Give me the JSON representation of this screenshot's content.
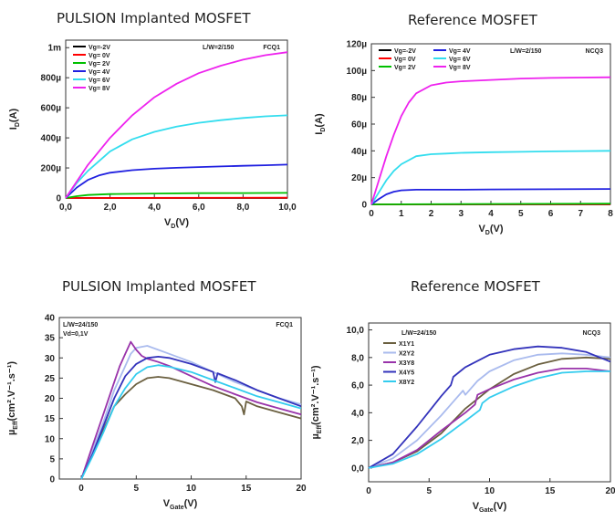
{
  "charts": [
    {
      "type": "line",
      "title": "PULSION Implanted MOSFET",
      "xlabel": "V",
      "xlabel_sub": "D",
      "xlabel_unit": "(V)",
      "ylabel": "I",
      "ylabel_sub": "D",
      "ylabel_unit": "(A)",
      "xlim": [
        0,
        10
      ],
      "ylim": [
        0,
        0.00105
      ],
      "xticks": [
        0,
        2,
        4,
        6,
        8,
        10
      ],
      "xtick_labels": [
        "0,0",
        "2,0",
        "4,0",
        "6,0",
        "8,0",
        "10,0"
      ],
      "yticks": [
        0,
        0.0002,
        0.0004,
        0.0006,
        0.0008,
        0.001
      ],
      "ytick_labels": [
        "0",
        "200µ",
        "400µ",
        "600µ",
        "800µ",
        "1m"
      ],
      "annotations": [
        "L/W=2/150",
        "FCQ1"
      ],
      "legend_cols": 1,
      "series": [
        {
          "name": "Vg=-2V",
          "color": "#000000",
          "x": [
            0,
            10
          ],
          "y": [
            0,
            0
          ]
        },
        {
          "name": "Vg= 0V",
          "color": "#ff0000",
          "x": [
            0,
            10
          ],
          "y": [
            0,
            2e-06
          ]
        },
        {
          "name": "Vg= 2V",
          "color": "#00c000",
          "x": [
            0,
            0.5,
            1,
            2,
            4,
            6,
            8,
            10
          ],
          "y": [
            0,
            1.2e-05,
            2e-05,
            2.6e-05,
            3e-05,
            3.2e-05,
            3.3e-05,
            3.4e-05
          ]
        },
        {
          "name": "Vg= 4V",
          "color": "#2020e0",
          "x": [
            0,
            0.5,
            1,
            1.5,
            2,
            3,
            4,
            5,
            6,
            7,
            8,
            9,
            10
          ],
          "y": [
            0,
            7e-05,
            0.00012,
            0.00015,
            0.000168,
            0.000185,
            0.000195,
            0.000201,
            0.000206,
            0.00021,
            0.000214,
            0.000218,
            0.000222
          ]
        },
        {
          "name": "Vg= 6V",
          "color": "#33ddee",
          "x": [
            0,
            0.5,
            1,
            2,
            3,
            4,
            5,
            6,
            7,
            8,
            9,
            10
          ],
          "y": [
            0,
            0.0001,
            0.00018,
            0.00031,
            0.00039,
            0.00044,
            0.000475,
            0.0005,
            0.000518,
            0.000532,
            0.000543,
            0.00055
          ]
        },
        {
          "name": "Vg= 8V",
          "color": "#ee22ee",
          "x": [
            0,
            1,
            2,
            3,
            4,
            5,
            6,
            7,
            8,
            9,
            10
          ],
          "y": [
            0,
            0.00022,
            0.0004,
            0.00055,
            0.00067,
            0.00076,
            0.00083,
            0.00088,
            0.00092,
            0.00095,
            0.00097
          ]
        }
      ]
    },
    {
      "type": "line",
      "title": "Reference MOSFET",
      "xlabel": "V",
      "xlabel_sub": "D",
      "xlabel_unit": "(V)",
      "ylabel": "I",
      "ylabel_sub": "D",
      "ylabel_unit": "(A)",
      "xlim": [
        0,
        8
      ],
      "ylim": [
        0,
        0.00012
      ],
      "xticks": [
        0,
        1,
        2,
        3,
        4,
        5,
        6,
        7,
        8
      ],
      "xtick_labels": [
        "0",
        "1",
        "2",
        "3",
        "4",
        "5",
        "6",
        "7",
        "8"
      ],
      "yticks": [
        0,
        2e-05,
        4e-05,
        6e-05,
        8e-05,
        0.0001,
        0.00012
      ],
      "ytick_labels": [
        "0",
        "20µ",
        "40µ",
        "60µ",
        "80µ",
        "100µ",
        "120µ"
      ],
      "annotations": [
        "L/W=2/150",
        "NCQ3"
      ],
      "legend_cols": 2,
      "series": [
        {
          "name": "Vg=-2V",
          "color": "#000000",
          "x": [
            0,
            8
          ],
          "y": [
            0,
            0
          ]
        },
        {
          "name": "Vg= 0V",
          "color": "#ff0000",
          "x": [
            0,
            8
          ],
          "y": [
            0,
            2e-07
          ]
        },
        {
          "name": "Vg= 2V",
          "color": "#00c000",
          "x": [
            0,
            8
          ],
          "y": [
            0,
            6e-07
          ]
        },
        {
          "name": "Vg= 4V",
          "color": "#2020e0",
          "x": [
            0,
            0.25,
            0.5,
            0.75,
            1,
            1.5,
            2,
            3,
            4,
            6,
            8
          ],
          "y": [
            0,
            4e-06,
            7.5e-06,
            9.5e-06,
            1.05e-05,
            1.1e-05,
            1.1e-05,
            1.1e-05,
            1.12e-05,
            1.13e-05,
            1.15e-05
          ]
        },
        {
          "name": "Vg= 6V",
          "color": "#33ddee",
          "x": [
            0,
            0.25,
            0.5,
            0.75,
            1,
            1.5,
            2,
            2.5,
            3,
            4,
            5,
            6,
            7,
            8
          ],
          "y": [
            0,
            9e-06,
            1.8e-05,
            2.5e-05,
            3e-05,
            3.6e-05,
            3.75e-05,
            3.8e-05,
            3.85e-05,
            3.9e-05,
            3.93e-05,
            3.96e-05,
            3.98e-05,
            4e-05
          ]
        },
        {
          "name": "Vg= 8V",
          "color": "#ee22ee",
          "x": [
            0,
            0.25,
            0.5,
            0.75,
            1,
            1.25,
            1.5,
            2,
            2.5,
            3,
            4,
            5,
            6,
            7,
            8
          ],
          "y": [
            0,
            1.8e-05,
            3.6e-05,
            5.2e-05,
            6.6e-05,
            7.6e-05,
            8.3e-05,
            8.9e-05,
            9.1e-05,
            9.2e-05,
            9.3e-05,
            9.4e-05,
            9.45e-05,
            9.48e-05,
            9.5e-05
          ]
        }
      ]
    },
    {
      "type": "line",
      "title": "PULSION Implanted MOSFET",
      "xlabel": "V",
      "xlabel_sub": "Gate",
      "xlabel_unit": "(V)",
      "ylabel": "µ",
      "ylabel_sub": "Eff",
      "ylabel_unit": "(cm².V⁻¹.s⁻¹)",
      "xlim": [
        -2,
        20
      ],
      "ylim": [
        0,
        40
      ],
      "xticks": [
        0,
        5,
        10,
        15,
        20
      ],
      "xtick_labels": [
        "0",
        "5",
        "10",
        "15",
        "20"
      ],
      "yticks": [
        0,
        5,
        10,
        15,
        20,
        25,
        30,
        35,
        40
      ],
      "ytick_labels": [
        "0",
        "5",
        "10",
        "15",
        "20",
        "25",
        "30",
        "35",
        "40"
      ],
      "annotations": [
        "L/W=24/150",
        "Vd=0,1V",
        "FCQ1"
      ],
      "legend_cols": 0,
      "series": [
        {
          "color": "#6b6040",
          "x": [
            0,
            1,
            2,
            3,
            4,
            5,
            6,
            7,
            8,
            10,
            12,
            14,
            14.6,
            14.8,
            15,
            16,
            18,
            20
          ],
          "y": [
            0,
            6,
            12,
            18,
            21,
            23.5,
            25,
            25.3,
            25,
            23.5,
            22,
            20,
            18,
            16,
            19.2,
            18,
            16.5,
            15
          ]
        },
        {
          "color": "#aabbee",
          "x": [
            0,
            1,
            2,
            3,
            4,
            4.5,
            5,
            6,
            7,
            8,
            10,
            12,
            14,
            16,
            18,
            20
          ],
          "y": [
            0,
            7,
            14,
            22,
            28,
            31,
            32.5,
            33,
            32,
            31,
            29,
            26.5,
            24,
            22,
            20,
            18.5
          ]
        },
        {
          "color": "#9933aa",
          "x": [
            0,
            1,
            2,
            3,
            3.5,
            4,
            4.5,
            5,
            5.5,
            6,
            7,
            8,
            10,
            12,
            14,
            16,
            18,
            20
          ],
          "y": [
            0,
            8,
            16,
            24,
            28,
            31,
            34,
            32,
            30.5,
            29.8,
            29,
            28,
            25.5,
            23,
            21,
            19,
            17.5,
            16
          ]
        },
        {
          "color": "#3333bb",
          "x": [
            0,
            1,
            2,
            3,
            4,
            5,
            6,
            7,
            8,
            10,
            12,
            12.2,
            12.4,
            14,
            16,
            18,
            20
          ],
          "y": [
            0,
            6,
            13,
            20,
            25.5,
            28.5,
            30,
            30.3,
            30,
            28.5,
            26.5,
            24,
            26.2,
            24.5,
            22,
            20,
            18
          ]
        },
        {
          "color": "#33ccee",
          "x": [
            0,
            1,
            2,
            3,
            4,
            5,
            6,
            7,
            8,
            10,
            12,
            14,
            16,
            18,
            20
          ],
          "y": [
            0,
            5.5,
            11.5,
            18,
            22.5,
            26,
            27.7,
            28.2,
            27.8,
            26.5,
            24.5,
            22.5,
            20.5,
            19,
            17.5
          ]
        }
      ]
    },
    {
      "type": "line",
      "title": "Reference MOSFET",
      "xlabel": "V",
      "xlabel_sub": "Gate",
      "xlabel_unit": "(V)",
      "ylabel": "µ",
      "ylabel_sub": "Eff",
      "ylabel_unit": "(cm².V⁻¹.s⁻¹)",
      "xlim": [
        0,
        20
      ],
      "ylim": [
        -1,
        10.5
      ],
      "xticks": [
        0,
        5,
        10,
        15,
        20
      ],
      "xtick_labels": [
        "0",
        "5",
        "10",
        "15",
        "20"
      ],
      "yticks": [
        0,
        2,
        4,
        6,
        8,
        10
      ],
      "ytick_labels": [
        "0,0",
        "2,0",
        "4,0",
        "6,0",
        "8,0",
        "10,0"
      ],
      "annotations": [
        "L/W=24/150",
        "NCQ3"
      ],
      "legend_cols": 1,
      "series": [
        {
          "name": "X1Y1",
          "color": "#6b6040",
          "x": [
            0,
            2,
            4,
            6,
            7,
            8,
            9,
            10,
            12,
            14,
            16,
            18,
            20
          ],
          "y": [
            0,
            0.4,
            1.2,
            2.5,
            3.4,
            4.3,
            5.0,
            5.7,
            6.8,
            7.5,
            7.9,
            8.0,
            7.9
          ]
        },
        {
          "name": "X2Y2",
          "color": "#aabbee",
          "x": [
            0,
            2,
            4,
            6,
            7,
            7.8,
            8,
            9,
            10,
            12,
            14,
            16,
            18,
            20
          ],
          "y": [
            0,
            0.7,
            2,
            3.8,
            4.8,
            5.6,
            5.3,
            6.3,
            7.0,
            7.8,
            8.2,
            8.3,
            8.2,
            8.0
          ]
        },
        {
          "name": "X3Y8",
          "color": "#9933aa",
          "x": [
            0,
            2,
            4,
            6,
            8,
            8.8,
            9,
            10,
            12,
            14,
            16,
            18,
            20
          ],
          "y": [
            0,
            0.4,
            1.3,
            2.7,
            4.0,
            4.6,
            5.3,
            5.7,
            6.4,
            6.9,
            7.2,
            7.2,
            7.0
          ]
        },
        {
          "name": "X4Y5",
          "color": "#3333bb",
          "x": [
            0,
            2,
            4,
            5,
            6,
            6.8,
            7,
            8,
            10,
            12,
            14,
            16,
            18,
            20
          ],
          "y": [
            0,
            1,
            3,
            4.1,
            5.2,
            6.0,
            6.6,
            7.3,
            8.2,
            8.6,
            8.8,
            8.7,
            8.4,
            7.7
          ]
        },
        {
          "name": "X8Y2",
          "color": "#33ccee",
          "x": [
            0,
            2,
            4,
            6,
            8,
            9.2,
            9.4,
            10,
            12,
            14,
            16,
            18,
            20
          ],
          "y": [
            0,
            0.3,
            1.0,
            2.1,
            3.4,
            4.2,
            4.7,
            5.1,
            5.9,
            6.5,
            6.9,
            7.0,
            7.0
          ]
        }
      ]
    }
  ]
}
